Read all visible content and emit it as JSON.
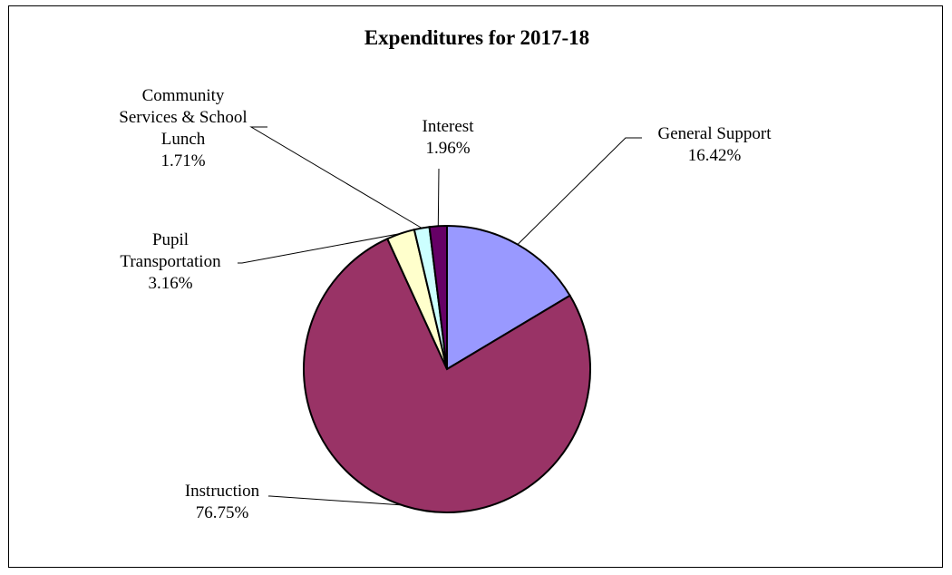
{
  "chart_data": {
    "type": "pie",
    "title": "Expenditures for 2017-18",
    "slices": [
      {
        "name": "General Support",
        "value": 16.42,
        "value_label": "16.42%",
        "label_lines": [
          "General Support"
        ],
        "color": "#9999ff"
      },
      {
        "name": "Instruction",
        "value": 76.75,
        "value_label": "76.75%",
        "label_lines": [
          "Instruction"
        ],
        "color": "#993366"
      },
      {
        "name": "Pupil Transportation",
        "value": 3.16,
        "value_label": "3.16%",
        "label_lines": [
          "Pupil",
          "Transportation"
        ],
        "color": "#ffffcc"
      },
      {
        "name": "Community Services & School Lunch",
        "value": 1.71,
        "value_label": "1.71%",
        "label_lines": [
          "Community",
          "Services & School",
          "Lunch"
        ],
        "color": "#ccffff"
      },
      {
        "name": "Interest",
        "value": 1.96,
        "value_label": "1.96%",
        "label_lines": [
          "Interest"
        ],
        "color": "#660066"
      }
    ],
    "start_angle": "12 o'clock",
    "direction": "clockwise",
    "legend": "none",
    "labels": "outside with leader lines"
  }
}
